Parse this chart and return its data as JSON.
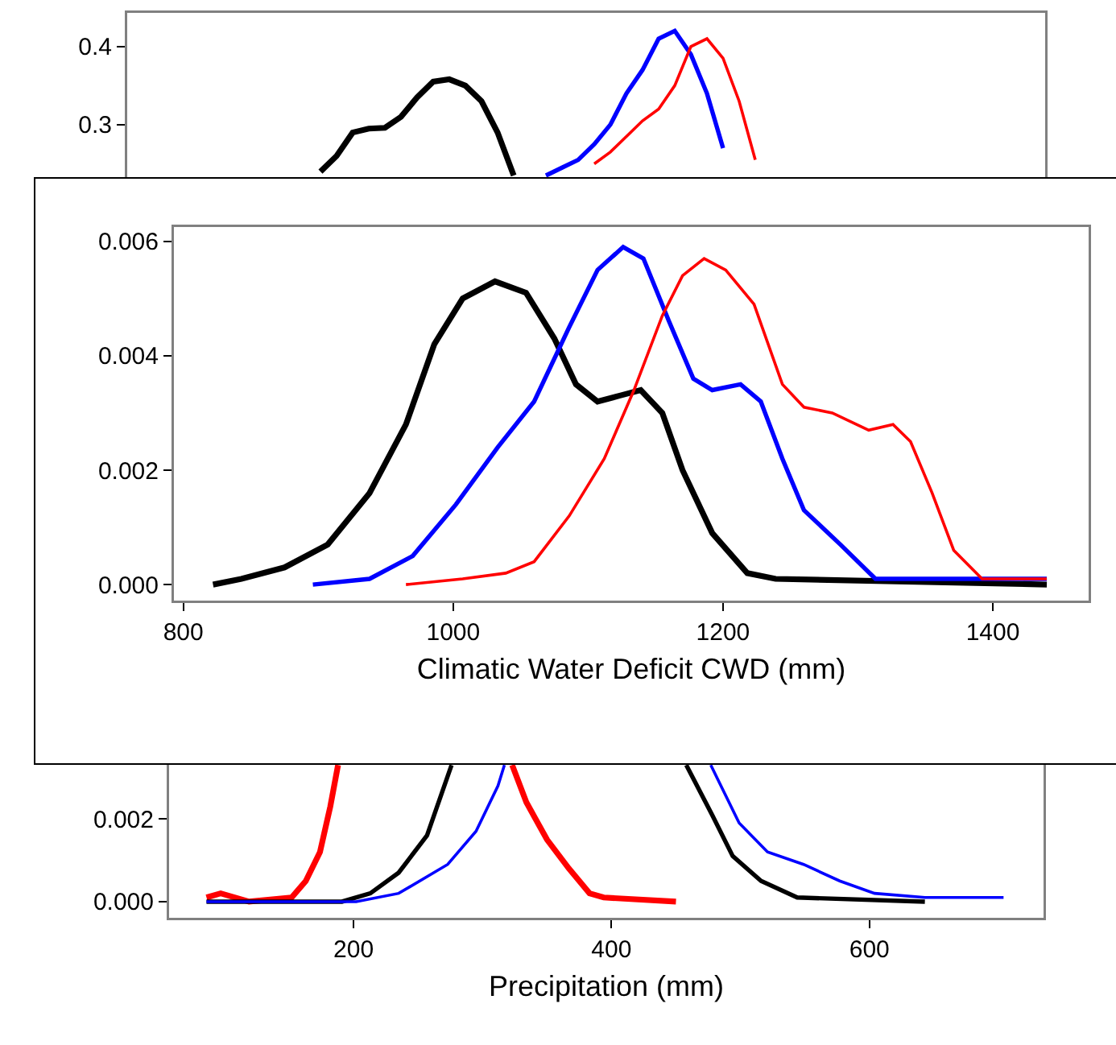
{
  "chart_data": [
    {
      "type": "line",
      "tick_labels": "y",
      "line_style": "solid",
      "ylim": [
        0.2,
        0.443
      ],
      "yticks": [
        0.3,
        0.4
      ],
      "categories": [
        null,
        null,
        null,
        null,
        null,
        null,
        null,
        null,
        null,
        null,
        null,
        null,
        null,
        null,
        null,
        null,
        null,
        null,
        null,
        null,
        null,
        null,
        null,
        null,
        null,
        null,
        null,
        null,
        null,
        null,
        null,
        null,
        null,
        null,
        null,
        null,
        null,
        null,
        null,
        null,
        null,
        null,
        null,
        null,
        null,
        null,
        null,
        null,
        null,
        null,
        null,
        null,
        null,
        null,
        null,
        null,
        null,
        null
      ],
      "series": [
        {
          "color": "#000000",
          "values": [
            null,
            null,
            null,
            null,
            null,
            null,
            null,
            null,
            null,
            null,
            null,
            null,
            0.24,
            0.26,
            0.29,
            0.295,
            0.296,
            0.31,
            0.335,
            0.355,
            0.358,
            0.35,
            0.33,
            0.29,
            0.235,
            null,
            null,
            null,
            null,
            null,
            null,
            null,
            null,
            null,
            null,
            null,
            null,
            null,
            null,
            null,
            null,
            null,
            null,
            null,
            null,
            null,
            null,
            null,
            null,
            null,
            null,
            null,
            null,
            null,
            null,
            null,
            null,
            null
          ]
        },
        {
          "color": "#0000ff",
          "values": [
            null,
            null,
            null,
            null,
            null,
            null,
            null,
            null,
            null,
            null,
            null,
            null,
            null,
            null,
            null,
            null,
            null,
            null,
            null,
            null,
            null,
            null,
            null,
            null,
            null,
            null,
            0.235,
            0.245,
            0.255,
            0.275,
            0.3,
            0.34,
            0.37,
            0.41,
            0.42,
            0.39,
            0.34,
            0.27,
            null,
            null,
            null,
            null,
            null,
            null,
            null,
            null,
            null,
            null,
            null,
            null,
            null,
            null,
            null,
            null,
            null,
            null,
            null,
            null
          ]
        },
        {
          "color": "#ff0000",
          "values": [
            null,
            null,
            null,
            null,
            null,
            null,
            null,
            null,
            null,
            null,
            null,
            null,
            null,
            null,
            null,
            null,
            null,
            null,
            null,
            null,
            null,
            null,
            null,
            null,
            null,
            null,
            null,
            null,
            null,
            0.25,
            0.265,
            0.285,
            0.305,
            0.32,
            0.35,
            0.4,
            0.41,
            0.385,
            0.33,
            0.255,
            null,
            null,
            null,
            null,
            null,
            null,
            null,
            null,
            null,
            null,
            null,
            null,
            null,
            null,
            null,
            null,
            null,
            null
          ]
        }
      ]
    },
    {
      "type": "line",
      "line_style": "solid",
      "xlabel": "Climatic Water Deficit CWD (mm)",
      "xlim": [
        793,
        1471
      ],
      "xticks": [
        800,
        1000,
        1200,
        1400
      ],
      "ylim": [
        -0.00028,
        0.00625
      ],
      "yticks": [
        {
          "value": 0,
          "label": "0.000"
        },
        {
          "value": 0.002,
          "label": "0.002"
        },
        {
          "value": 0.004,
          "label": "0.004"
        },
        {
          "value": 0.006,
          "label": "0.006"
        }
      ],
      "series": [
        {
          "color": "#000000",
          "x": [
            822,
            843,
            875,
            907,
            938,
            965,
            986,
            1007,
            1031,
            1054,
            1075,
            1091,
            1107,
            1123,
            1139,
            1155,
            1170,
            1192,
            1218,
            1239,
            1440
          ],
          "values": [
            0,
            0.0001,
            0.0003,
            0.0007,
            0.0016,
            0.0028,
            0.0042,
            0.005,
            0.0053,
            0.0051,
            0.0043,
            0.0035,
            0.0032,
            0.0033,
            0.0034,
            0.003,
            0.002,
            0.0009,
            0.0002,
            0.0001,
            0
          ]
        },
        {
          "color": "#0000ff",
          "x": [
            896,
            938,
            970,
            1002,
            1033,
            1060,
            1086,
            1107,
            1126,
            1141,
            1160,
            1178,
            1192,
            1213,
            1228,
            1244,
            1260,
            1287,
            1313,
            1350,
            1440
          ],
          "values": [
            0,
            0.0001,
            0.0005,
            0.0014,
            0.0024,
            0.0032,
            0.0045,
            0.0055,
            0.0059,
            0.0057,
            0.0046,
            0.0036,
            0.0034,
            0.0035,
            0.0032,
            0.0022,
            0.0013,
            0.0007,
            0.0001,
            0.0001,
            0.0001
          ]
        },
        {
          "color": "#ff0000",
          "x": [
            965,
            1007,
            1039,
            1060,
            1086,
            1112,
            1134,
            1155,
            1170,
            1186,
            1202,
            1223,
            1244,
            1260,
            1281,
            1308,
            1326,
            1339,
            1355,
            1371,
            1392,
            1440
          ],
          "values": [
            0,
            0.0001,
            0.0002,
            0.0004,
            0.0012,
            0.0022,
            0.0034,
            0.0047,
            0.0054,
            0.0057,
            0.0055,
            0.0049,
            0.0035,
            0.0031,
            0.003,
            0.0027,
            0.0028,
            0.0025,
            0.0016,
            0.0006,
            0.0001,
            0.0001
          ]
        }
      ]
    },
    {
      "type": "line",
      "line_style": "solid",
      "xlabel": "Precipitation (mm)",
      "xlim": [
        57,
        735
      ],
      "xticks": [
        200,
        400,
        600
      ],
      "ylim": [
        -0.00039,
        0.0035
      ],
      "yticks": [
        {
          "value": 0,
          "label": "0.000"
        },
        {
          "value": 0.002,
          "label": "0.002"
        }
      ],
      "series": [
        {
          "color": "#ff0000",
          "x": [
            86,
            97,
            119,
            152,
            163,
            174,
            182,
            188,
            255,
            323,
            334,
            350,
            367,
            383,
            394,
            450
          ],
          "values": [
            0.0001,
            0.0002,
            0,
            0.0001,
            0.0005,
            0.0012,
            0.0023,
            0.0033,
            null,
            0.0033,
            0.0024,
            0.0015,
            0.0008,
            0.0002,
            0.0001,
            0
          ]
        },
        {
          "color": "#000000",
          "x": [
            86,
            191,
            213,
            235,
            257,
            276,
            367,
            458,
            478,
            494,
            516,
            544,
            643
          ],
          "values": [
            0,
            0,
            0.0002,
            0.0007,
            0.0016,
            0.0033,
            null,
            0.0033,
            0.0021,
            0.0011,
            0.0005,
            0.0001,
            0
          ]
        },
        {
          "color": "#0000ff",
          "x": [
            86,
            202,
            235,
            273,
            295,
            312,
            317,
            397,
            477,
            499,
            521,
            549,
            577,
            604,
            643,
            704
          ],
          "values": [
            0,
            0,
            0.0002,
            0.0009,
            0.0017,
            0.0028,
            0.0033,
            null,
            0.0033,
            0.0019,
            0.0012,
            0.0009,
            0.0005,
            0.0002,
            0.0001,
            0.0001
          ]
        }
      ]
    }
  ]
}
